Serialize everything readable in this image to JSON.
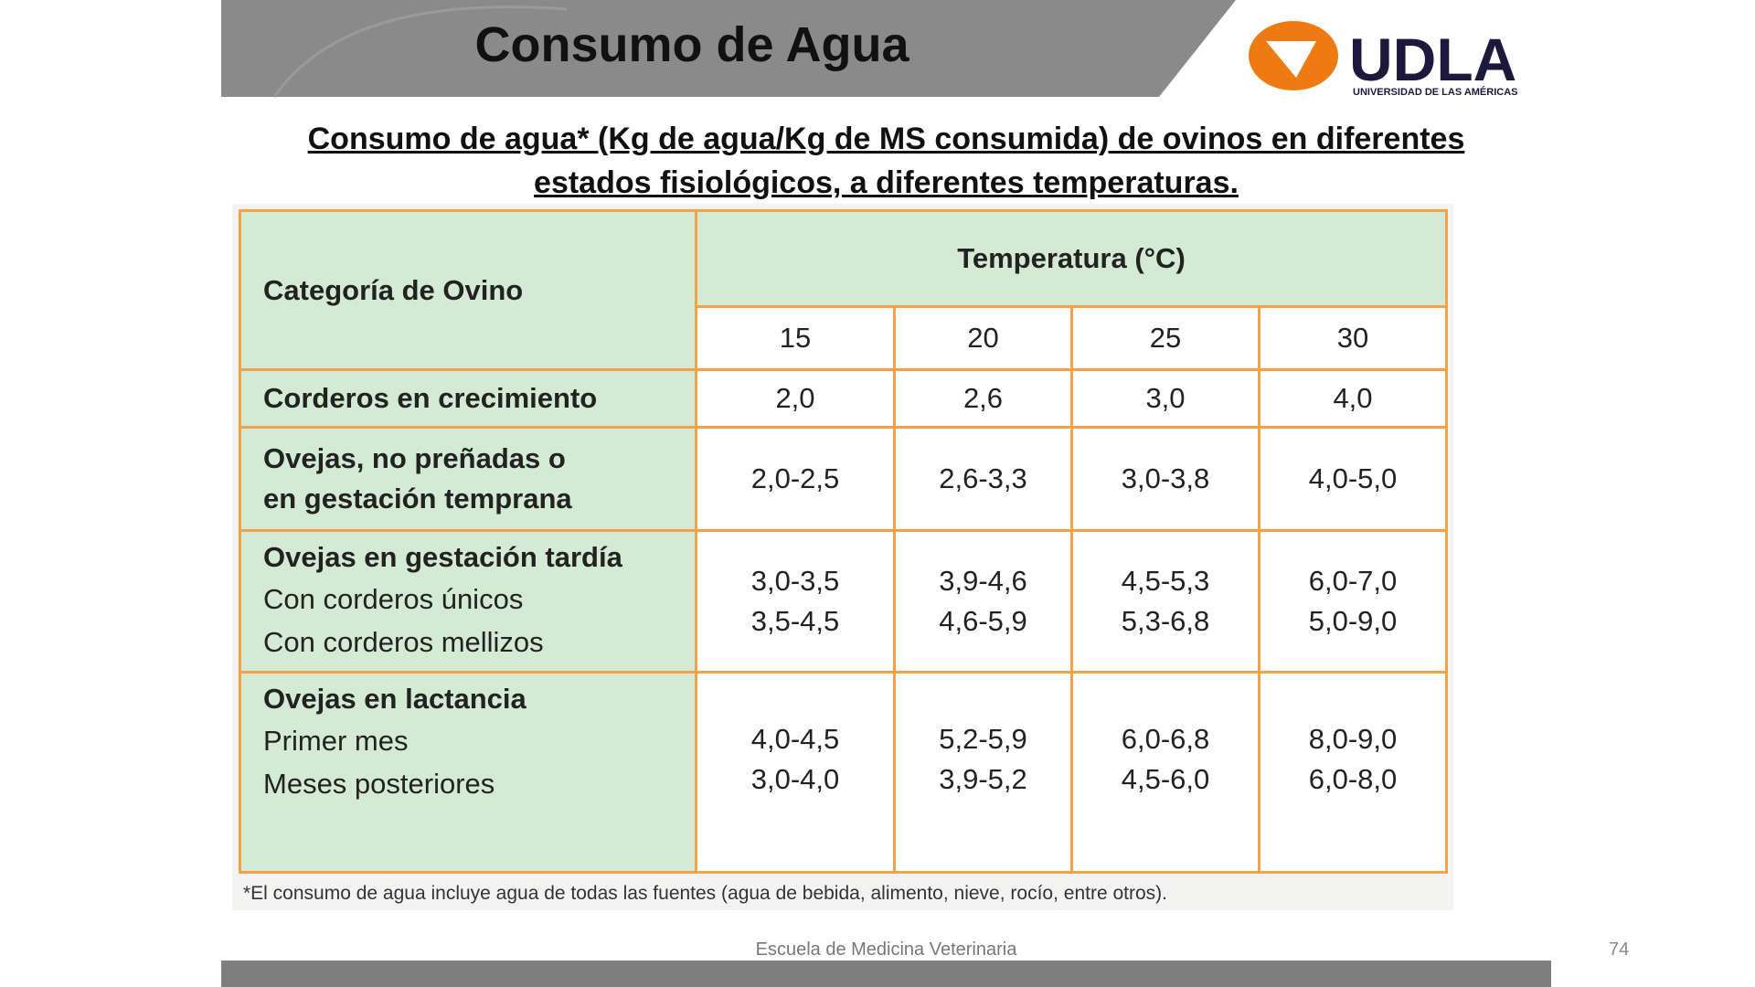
{
  "header": {
    "title": "Consumo de Agua",
    "logo_text": "UDLA",
    "logo_subtitle": "UNIVERSIDAD DE LAS AMÉRICAS"
  },
  "subtitle": [
    "Consumo de agua* (Kg de agua/Kg de MS consumida) de ovinos en diferentes",
    "estados fisiológicos, a diferentes temperaturas."
  ],
  "table": {
    "category_header": "Categoría de Ovino",
    "temperature_header": "Temperatura (°C)",
    "temperatures": [
      15,
      20,
      25,
      30
    ],
    "rows": [
      {
        "category": [
          "Corderos en crecimiento"
        ],
        "sublabels": [],
        "values": [
          [
            "2,0"
          ],
          [
            "2,6"
          ],
          [
            "3,0"
          ],
          [
            "4,0"
          ]
        ]
      },
      {
        "category": [
          "Ovejas, no preñadas o",
          "en gestación temprana"
        ],
        "sublabels": [],
        "values": [
          [
            "2,0-2,5"
          ],
          [
            "2,6-3,3"
          ],
          [
            "3,0-3,8"
          ],
          [
            "4,0-5,0"
          ]
        ]
      },
      {
        "category": [
          "Ovejas en gestación tardía"
        ],
        "sublabels": [
          "Con corderos únicos",
          "Con corderos mellizos"
        ],
        "values": [
          [
            "3,0-3,5",
            "3,5-4,5"
          ],
          [
            "3,9-4,6",
            "4,6-5,9"
          ],
          [
            "4,5-5,3",
            "5,3-6,8"
          ],
          [
            "6,0-7,0",
            "5,0-9,0"
          ]
        ]
      },
      {
        "category": [
          "Ovejas en lactancia"
        ],
        "sublabels": [
          "Primer mes",
          "Meses posteriores"
        ],
        "values": [
          [
            "4,0-4,5",
            "3,0-4,0"
          ],
          [
            "5,2-5,9",
            "3,9-5,2"
          ],
          [
            "6,0-6,8",
            "4,5-6,0"
          ],
          [
            "8,0-9,0",
            "6,0-8,0"
          ]
        ]
      }
    ],
    "footnote": "*El consumo de agua incluye agua de todas las fuentes (agua de bebida, alimento, nieve, rocío, entre otros)."
  },
  "footer": {
    "text": "Escuela de Medicina Veterinaria",
    "page": "74"
  }
}
